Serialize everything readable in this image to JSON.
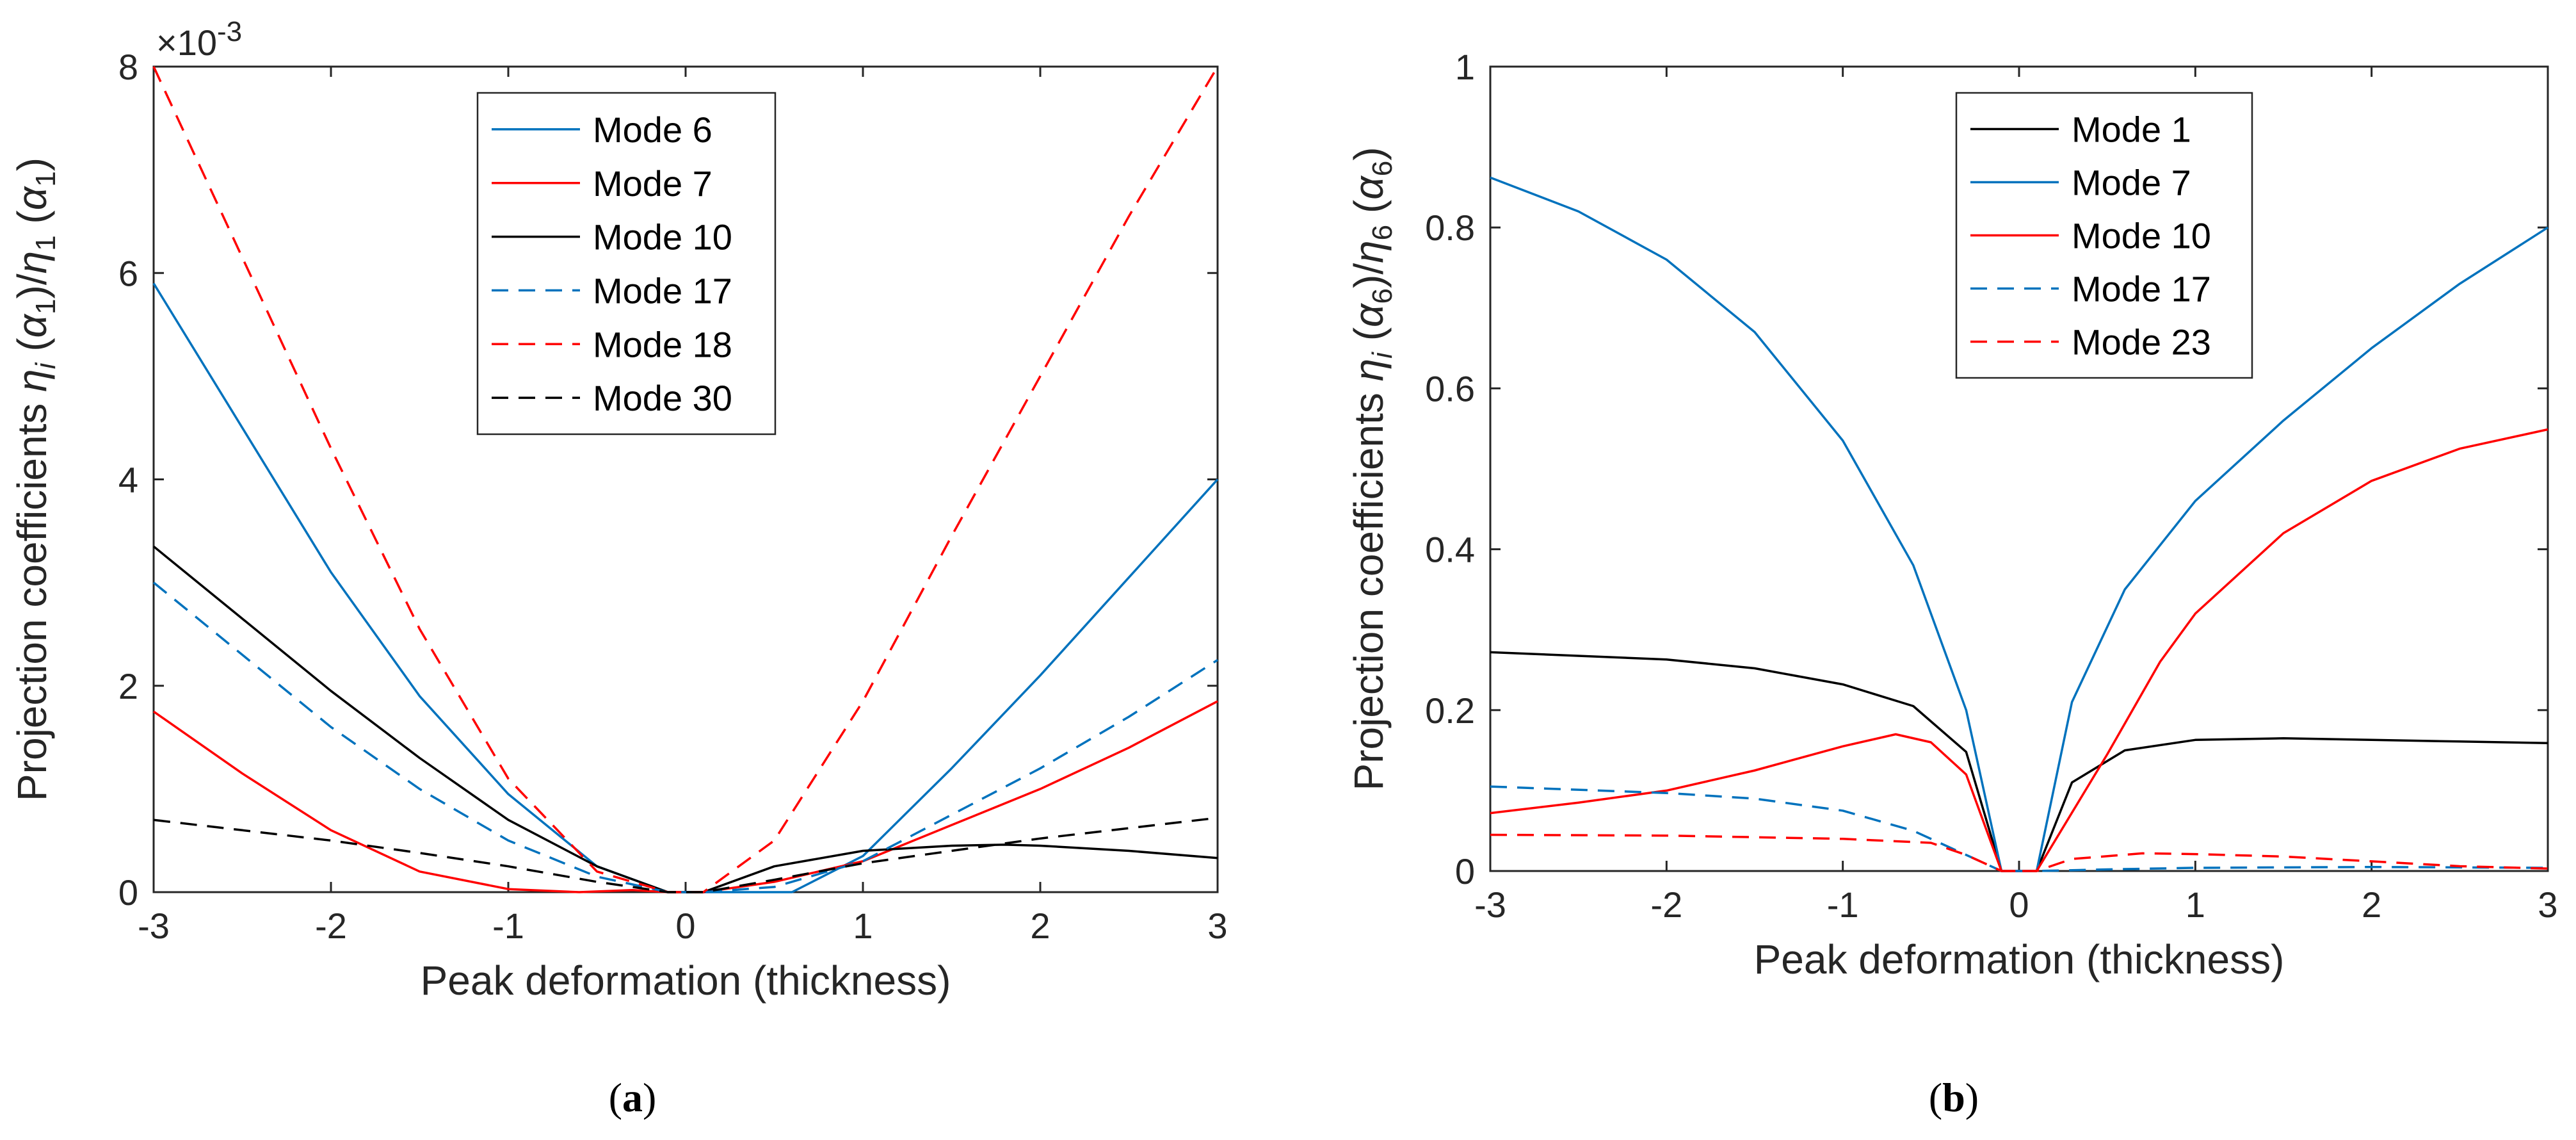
{
  "chart_data": [
    {
      "type": "line",
      "caption": "(a)",
      "xlabel": "Peak deformation (thickness)",
      "ylabel": "Projection coefficients η_i (α_1)/η_1 (α_1)",
      "y_exponent": "×10-3",
      "xlim": [
        -3,
        3
      ],
      "ylim": [
        0,
        8
      ],
      "xticks": [
        "-3",
        "-2",
        "-1",
        "0",
        "1",
        "2",
        "3"
      ],
      "yticks": [
        "0",
        "2",
        "4",
        "6",
        "8"
      ],
      "legend_position": "top-center",
      "series": [
        {
          "name": "Mode 6",
          "color": "#0072BD",
          "dash": "solid",
          "x": [
            -3,
            -2.5,
            -2,
            -1.5,
            -1,
            -0.5,
            -0.1,
            0.1,
            0.6,
            1,
            1.5,
            2,
            2.5,
            3
          ],
          "y": [
            5.9,
            4.5,
            3.1,
            1.9,
            0.95,
            0.25,
            0,
            0,
            0,
            0.35,
            1.2,
            2.1,
            3.05,
            4.0
          ]
        },
        {
          "name": "Mode 7",
          "color": "#FF0000",
          "dash": "solid",
          "x": [
            -3,
            -2.5,
            -2,
            -1.5,
            -1,
            -0.6,
            -0.3,
            -0.1,
            0.1,
            0.5,
            1,
            1.5,
            2,
            2.5,
            3
          ],
          "y": [
            1.75,
            1.15,
            0.6,
            0.2,
            0.03,
            0,
            0.02,
            0,
            0,
            0.1,
            0.3,
            0.65,
            1.0,
            1.4,
            1.85
          ]
        },
        {
          "name": "Mode 10",
          "color": "#000000",
          "dash": "solid",
          "x": [
            -3,
            -2.5,
            -2,
            -1.5,
            -1,
            -0.5,
            -0.1,
            0.1,
            0.5,
            1,
            1.5,
            1.8,
            2,
            2.5,
            3
          ],
          "y": [
            3.35,
            2.65,
            1.95,
            1.3,
            0.7,
            0.25,
            0,
            0,
            0.25,
            0.4,
            0.45,
            0.46,
            0.45,
            0.4,
            0.33
          ]
        },
        {
          "name": "Mode 17",
          "color": "#0072BD",
          "dash": "dashed",
          "x": [
            -3,
            -2.5,
            -2,
            -1.5,
            -1,
            -0.5,
            -0.1,
            0.1,
            0.5,
            1,
            1.5,
            2,
            2.5,
            3
          ],
          "y": [
            3.0,
            2.3,
            1.6,
            1.0,
            0.5,
            0.15,
            0,
            0,
            0.05,
            0.3,
            0.75,
            1.2,
            1.7,
            2.25
          ]
        },
        {
          "name": "Mode 18",
          "color": "#FF0000",
          "dash": "dashed",
          "x": [
            -3,
            -2.5,
            -2,
            -1.5,
            -1,
            -0.5,
            -0.1,
            0.1,
            0.5,
            1,
            1.5,
            2,
            2.5,
            3
          ],
          "y": [
            8.0,
            6.15,
            4.3,
            2.55,
            1.1,
            0.2,
            0,
            0,
            0.5,
            1.85,
            3.45,
            5.0,
            6.55,
            8.0
          ]
        },
        {
          "name": "Mode 30",
          "color": "#000000",
          "dash": "dashed",
          "x": [
            -3,
            -2.5,
            -2,
            -1.5,
            -1,
            -0.5,
            -0.1,
            0.1,
            0.5,
            1,
            1.5,
            2,
            2.5,
            3
          ],
          "y": [
            0.7,
            0.6,
            0.5,
            0.38,
            0.25,
            0.1,
            0,
            0,
            0.12,
            0.28,
            0.4,
            0.52,
            0.62,
            0.72
          ]
        }
      ]
    },
    {
      "type": "line",
      "caption": "(b)",
      "xlabel": "Peak deformation (thickness)",
      "ylabel": "Projection coefficients η_i (α_6)/η_6 (α_6)",
      "xlim": [
        -3,
        3
      ],
      "ylim": [
        0,
        1
      ],
      "xticks": [
        "-3",
        "-2",
        "-1",
        "0",
        "1",
        "2",
        "3"
      ],
      "yticks": [
        "0",
        "0.2",
        "0.4",
        "0.6",
        "0.8",
        "1"
      ],
      "legend_position": "top-center",
      "series": [
        {
          "name": "Mode 1",
          "color": "#000000",
          "dash": "solid",
          "x": [
            -3,
            -2,
            -1.5,
            -1,
            -0.6,
            -0.3,
            -0.1,
            0.1,
            0.3,
            0.6,
            1,
            1.5,
            2,
            2.5,
            3
          ],
          "y": [
            0.272,
            0.263,
            0.252,
            0.232,
            0.205,
            0.148,
            0,
            0,
            0.11,
            0.15,
            0.163,
            0.165,
            0.163,
            0.161,
            0.159
          ]
        },
        {
          "name": "Mode 7",
          "color": "#0072BD",
          "dash": "solid",
          "x": [
            -3,
            -2.5,
            -2,
            -1.5,
            -1,
            -0.6,
            -0.3,
            -0.1,
            0.1,
            0.3,
            0.6,
            1,
            1.5,
            2,
            2.5,
            3
          ],
          "y": [
            0.862,
            0.82,
            0.76,
            0.67,
            0.535,
            0.38,
            0.2,
            0,
            0,
            0.21,
            0.35,
            0.46,
            0.56,
            0.65,
            0.73,
            0.8
          ]
        },
        {
          "name": "Mode 10",
          "color": "#FF0000",
          "dash": "solid",
          "x": [
            -3,
            -2.5,
            -2,
            -1.5,
            -1,
            -0.7,
            -0.5,
            -0.3,
            -0.1,
            0.1,
            0.5,
            0.8,
            1,
            1.5,
            2,
            2.5,
            3
          ],
          "y": [
            0.072,
            0.085,
            0.1,
            0.125,
            0.155,
            0.17,
            0.16,
            0.12,
            0,
            0,
            0.145,
            0.26,
            0.32,
            0.42,
            0.485,
            0.525,
            0.549
          ]
        },
        {
          "name": "Mode 17",
          "color": "#0072BD",
          "dash": "dashed",
          "x": [
            -3,
            -2,
            -1.5,
            -1,
            -0.6,
            -0.3,
            -0.1,
            0.1,
            0.5,
            1,
            2,
            3
          ],
          "y": [
            0.105,
            0.097,
            0.09,
            0.075,
            0.05,
            0.02,
            0,
            0,
            0.002,
            0.004,
            0.005,
            0.004
          ]
        },
        {
          "name": "Mode 23",
          "color": "#FF0000",
          "dash": "dashed",
          "x": [
            -3,
            -2,
            -1.5,
            -1,
            -0.5,
            -0.3,
            -0.1,
            0.1,
            0.3,
            0.7,
            1,
            1.5,
            2,
            2.5,
            3
          ],
          "y": [
            0.045,
            0.044,
            0.042,
            0.04,
            0.035,
            0.02,
            0,
            0,
            0.015,
            0.022,
            0.021,
            0.018,
            0.012,
            0.006,
            0.003
          ]
        }
      ]
    }
  ]
}
